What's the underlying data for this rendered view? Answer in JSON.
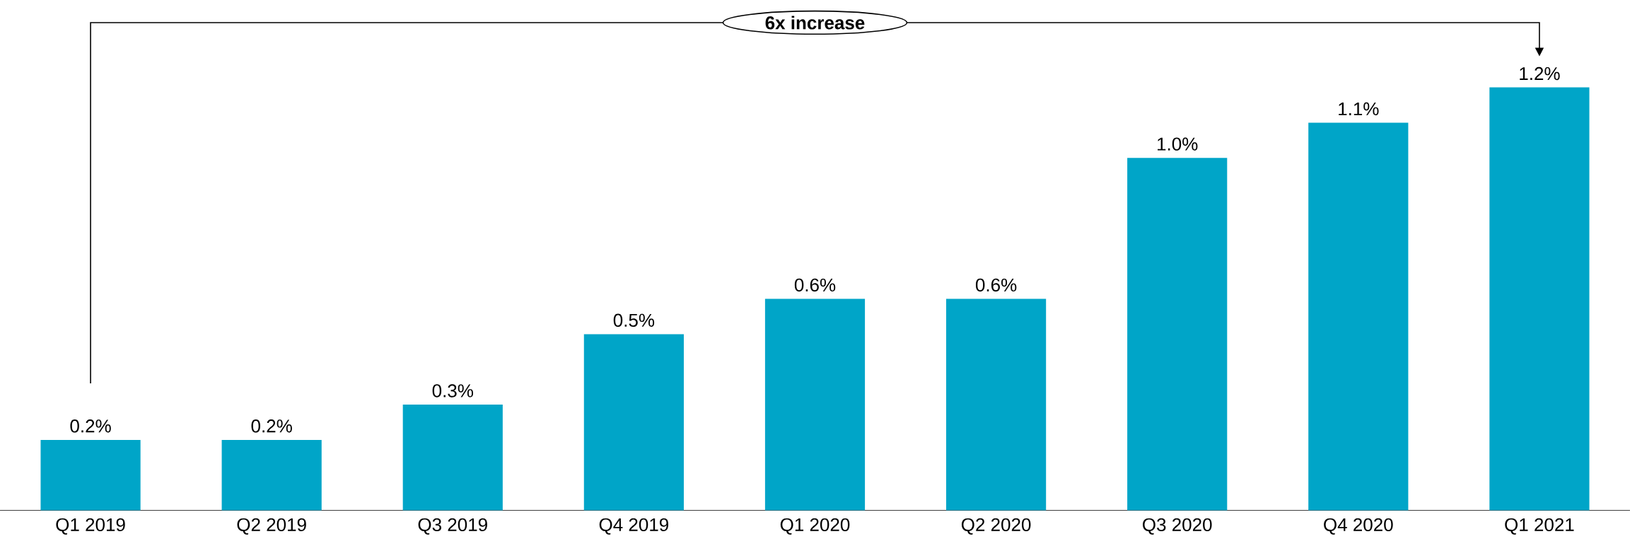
{
  "chart_data": {
    "type": "bar",
    "categories": [
      "Q1 2019",
      "Q2 2019",
      "Q3 2019",
      "Q4 2019",
      "Q1 2020",
      "Q2 2020",
      "Q3 2020",
      "Q4 2020",
      "Q1 2021"
    ],
    "values": [
      0.2,
      0.2,
      0.3,
      0.5,
      0.6,
      0.6,
      1.0,
      1.1,
      1.2
    ],
    "value_labels": [
      "0.2%",
      "0.2%",
      "0.3%",
      "0.5%",
      "0.6%",
      "0.6%",
      "1.0%",
      "1.1%",
      "1.2%"
    ],
    "color": "#00a5c8",
    "annotations": [
      "6x increase"
    ]
  }
}
